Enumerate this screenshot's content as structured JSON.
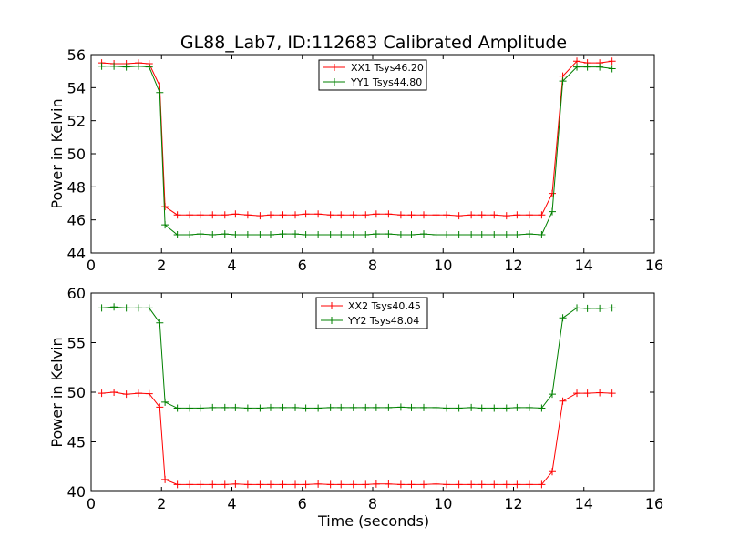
{
  "chart_data": [
    {
      "type": "line",
      "title": "GL88_Lab7, ID:112683 Calibrated Amplitude",
      "xlabel": "",
      "ylabel": "Power in Kelvin",
      "xlim": [
        0,
        16
      ],
      "ylim": [
        44,
        56
      ],
      "xticks": [
        0,
        2,
        4,
        6,
        8,
        10,
        12,
        14,
        16
      ],
      "yticks": [
        44,
        46,
        48,
        50,
        52,
        54,
        56
      ],
      "legend_position": "top-center",
      "x": [
        0.3,
        0.65,
        1.0,
        1.35,
        1.65,
        1.95,
        2.1,
        2.45,
        2.8,
        3.1,
        3.45,
        3.8,
        4.1,
        4.45,
        4.8,
        5.1,
        5.45,
        5.8,
        6.1,
        6.45,
        6.8,
        7.1,
        7.45,
        7.8,
        8.1,
        8.45,
        8.8,
        9.1,
        9.45,
        9.8,
        10.1,
        10.45,
        10.8,
        11.1,
        11.45,
        11.8,
        12.1,
        12.45,
        12.8,
        13.1,
        13.4,
        13.8,
        14.1,
        14.45,
        14.8
      ],
      "series": [
        {
          "name": "XX1 Tsys46.20",
          "color": "#ff0000",
          "values": [
            55.5,
            55.45,
            55.45,
            55.5,
            55.45,
            54.1,
            46.8,
            46.3,
            46.3,
            46.3,
            46.3,
            46.3,
            46.35,
            46.3,
            46.25,
            46.3,
            46.3,
            46.3,
            46.35,
            46.35,
            46.3,
            46.3,
            46.3,
            46.3,
            46.35,
            46.35,
            46.3,
            46.3,
            46.3,
            46.3,
            46.3,
            46.25,
            46.3,
            46.3,
            46.3,
            46.25,
            46.3,
            46.3,
            46.3,
            47.6,
            54.7,
            55.6,
            55.5,
            55.5,
            55.6
          ]
        },
        {
          "name": "YY1 Tsys44.80",
          "color": "#008000",
          "values": [
            55.3,
            55.3,
            55.25,
            55.3,
            55.25,
            53.7,
            45.7,
            45.1,
            45.1,
            45.15,
            45.1,
            45.15,
            45.1,
            45.1,
            45.1,
            45.1,
            45.15,
            45.15,
            45.1,
            45.1,
            45.1,
            45.1,
            45.1,
            45.1,
            45.15,
            45.15,
            45.1,
            45.1,
            45.15,
            45.1,
            45.1,
            45.1,
            45.1,
            45.1,
            45.1,
            45.1,
            45.1,
            45.15,
            45.1,
            46.5,
            54.4,
            55.25,
            55.25,
            55.25,
            55.15
          ]
        }
      ]
    },
    {
      "type": "line",
      "title": "",
      "xlabel": "Time (seconds)",
      "ylabel": "Power in Kelvin",
      "xlim": [
        0,
        16
      ],
      "ylim": [
        40,
        60
      ],
      "xticks": [
        0,
        2,
        4,
        6,
        8,
        10,
        12,
        14,
        16
      ],
      "yticks": [
        40,
        45,
        50,
        55,
        60
      ],
      "legend_position": "top-center",
      "x": [
        0.3,
        0.65,
        1.0,
        1.35,
        1.65,
        1.95,
        2.1,
        2.45,
        2.8,
        3.1,
        3.45,
        3.8,
        4.1,
        4.45,
        4.8,
        5.1,
        5.45,
        5.8,
        6.1,
        6.45,
        6.8,
        7.1,
        7.45,
        7.8,
        8.1,
        8.45,
        8.8,
        9.1,
        9.45,
        9.8,
        10.1,
        10.45,
        10.8,
        11.1,
        11.45,
        11.8,
        12.1,
        12.45,
        12.8,
        13.1,
        13.4,
        13.8,
        14.1,
        14.45,
        14.8
      ],
      "series": [
        {
          "name": "XX2 Tsys40.45",
          "color": "#ff0000",
          "values": [
            49.9,
            50.0,
            49.8,
            49.9,
            49.85,
            48.5,
            41.2,
            40.7,
            40.7,
            40.7,
            40.7,
            40.7,
            40.75,
            40.7,
            40.7,
            40.7,
            40.7,
            40.7,
            40.7,
            40.75,
            40.7,
            40.7,
            40.7,
            40.7,
            40.75,
            40.75,
            40.7,
            40.7,
            40.7,
            40.75,
            40.7,
            40.7,
            40.7,
            40.7,
            40.7,
            40.7,
            40.7,
            40.7,
            40.7,
            42.0,
            49.1,
            49.9,
            49.9,
            49.95,
            49.9
          ]
        },
        {
          "name": "YY2 Tsys48.04",
          "color": "#008000",
          "values": [
            58.5,
            58.6,
            58.5,
            58.5,
            58.5,
            57.0,
            49.0,
            48.4,
            48.4,
            48.4,
            48.45,
            48.45,
            48.45,
            48.4,
            48.4,
            48.45,
            48.45,
            48.45,
            48.4,
            48.4,
            48.45,
            48.45,
            48.45,
            48.45,
            48.45,
            48.45,
            48.5,
            48.45,
            48.45,
            48.45,
            48.4,
            48.4,
            48.45,
            48.4,
            48.4,
            48.4,
            48.45,
            48.45,
            48.4,
            49.8,
            57.5,
            58.5,
            58.45,
            58.45,
            58.5
          ]
        }
      ]
    }
  ]
}
